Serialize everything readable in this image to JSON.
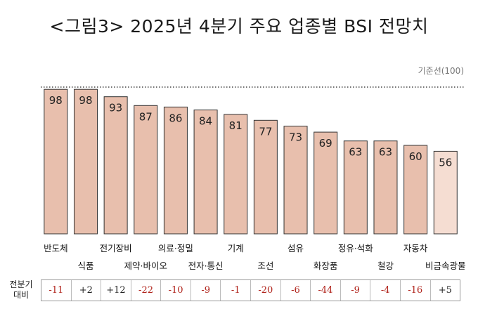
{
  "title": "<그림3> 2025년 4분기 주요 업종별 BSI 전망치",
  "baseline_label": "기준선(100)",
  "change_label_line1": "전분기",
  "change_label_line2": "대비",
  "colors": {
    "bar": "#e8bfad",
    "bar_last": "#f5ddd2",
    "bar_stroke": "#333333",
    "negative": "#b0221a",
    "positive": "#222222"
  },
  "chart_data": {
    "type": "bar",
    "title": "<그림3> 2025년 4분기 주요 업종별 BSI 전망치",
    "categories": [
      "반도체",
      "식품",
      "전기장비",
      "제약·바이오",
      "의료·정밀",
      "전자·통신",
      "기계",
      "조선",
      "섬유",
      "화장품",
      "정유·석화",
      "철강",
      "자동차",
      "비금속광물"
    ],
    "values": [
      98,
      98,
      93,
      87,
      86,
      84,
      81,
      77,
      73,
      69,
      63,
      63,
      60,
      56
    ],
    "changes": [
      "-11",
      "+2",
      "+12",
      "-22",
      "-10",
      "-9",
      "-1",
      "-20",
      "-6",
      "-44",
      "-9",
      "-4",
      "-16",
      "+5"
    ],
    "reference_line": 100,
    "ylim": [
      0,
      100
    ],
    "grid": false,
    "legend": "none"
  }
}
